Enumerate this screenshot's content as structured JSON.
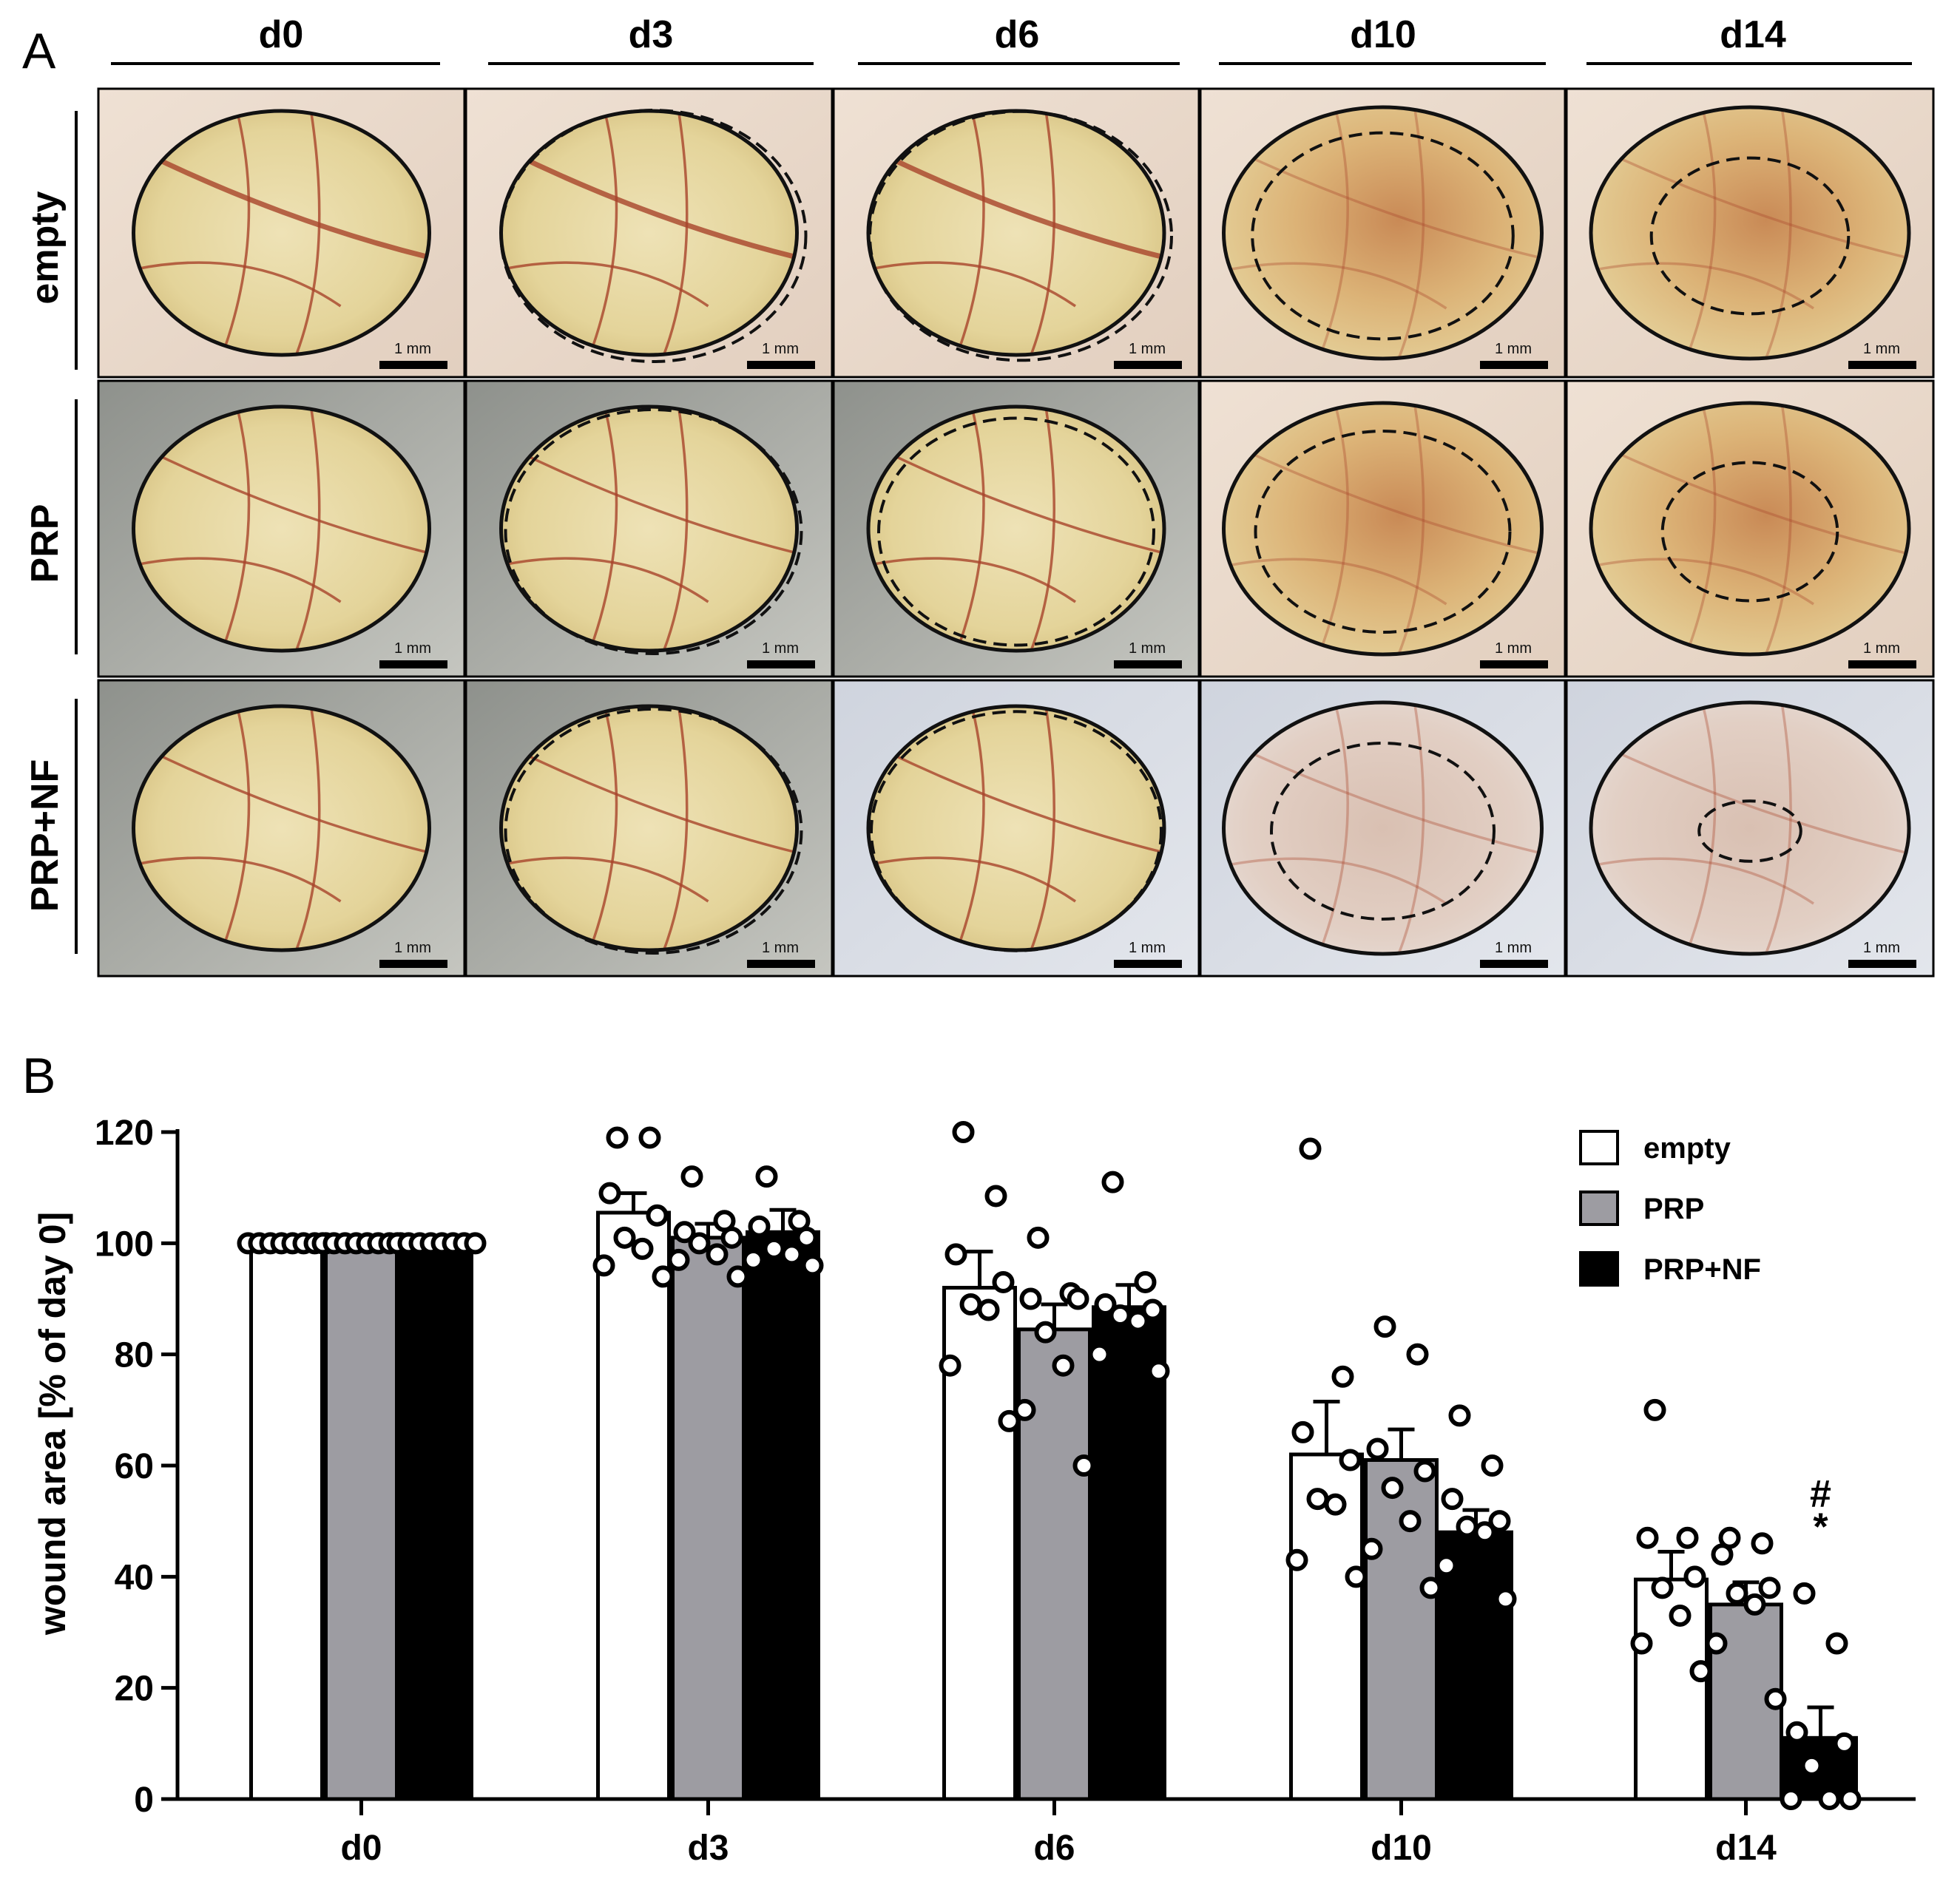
{
  "panel_a": {
    "label": "A",
    "days": [
      "d0",
      "d3",
      "d6",
      "d10",
      "d14"
    ],
    "groups": [
      "empty",
      "PRP",
      "PRP+NF"
    ],
    "scale_bar_text": "1 mm",
    "colors": {
      "tissue": "#e8d8a4",
      "vessel": "#a8442a",
      "outline": "#111111",
      "gray_bg": "#c9c9c4",
      "bluish_bg": "#d6dbe3"
    }
  },
  "chart_data": {
    "panel_label": "B",
    "type": "bar",
    "categories": [
      "d0",
      "d3",
      "d6",
      "d10",
      "d14"
    ],
    "ylabel": "wound area [% of day 0]",
    "xlabel": "",
    "ylim": [
      0,
      120
    ],
    "yticks": [
      0,
      20,
      40,
      60,
      80,
      100,
      120
    ],
    "legend_position": "top-right",
    "series": [
      {
        "name": "empty",
        "color": "#ffffff",
        "values": [
          100,
          105.5,
          92,
          62,
          39.5
        ],
        "sem": [
          0,
          3.5,
          6.5,
          9.5,
          5
        ],
        "points": [
          [
            100,
            100,
            100,
            100,
            100,
            100,
            100,
            100
          ],
          [
            119,
            119,
            109,
            105,
            101,
            99,
            96,
            94
          ],
          [
            120,
            108.5,
            98,
            93,
            89,
            88,
            78,
            68
          ],
          [
            117,
            76,
            66,
            61,
            54,
            53,
            43,
            40
          ],
          [
            70,
            47,
            47,
            40,
            38,
            33,
            28,
            23
          ]
        ]
      },
      {
        "name": "PRP",
        "color": "#9d9ca2",
        "values": [
          100,
          101,
          84.5,
          61,
          35
        ],
        "sem": [
          0,
          2.5,
          4.5,
          5.5,
          4
        ],
        "points": [
          [
            100,
            100,
            100,
            100,
            100,
            100,
            100,
            100
          ],
          [
            112,
            104,
            102,
            101,
            100,
            98,
            97,
            94
          ],
          [
            101,
            91,
            90,
            90,
            84,
            78,
            70,
            60
          ],
          [
            85,
            80,
            63,
            59,
            56,
            50,
            45,
            38
          ],
          [
            47,
            46,
            44,
            38,
            37,
            35,
            28,
            18
          ]
        ]
      },
      {
        "name": "PRP+NF",
        "color": "#000000",
        "values": [
          100,
          102,
          88.5,
          48,
          11
        ],
        "sem": [
          0,
          4,
          4,
          4,
          5.5
        ],
        "points": [
          [
            100,
            100,
            100,
            100,
            100,
            100,
            100,
            100
          ],
          [
            112,
            104,
            103,
            101,
            99,
            98,
            97,
            96
          ],
          [
            111,
            93,
            89,
            88,
            87,
            86,
            80,
            77
          ],
          [
            69,
            60,
            54,
            50,
            49,
            48,
            42,
            36
          ],
          [
            37,
            28,
            12,
            10,
            6,
            0,
            0,
            0
          ]
        ]
      }
    ],
    "annotations": [
      {
        "text": "#",
        "category": "d14",
        "series": "PRP+NF",
        "y": 55
      },
      {
        "text": "*",
        "category": "d14",
        "series": "PRP+NF",
        "y": 49
      }
    ]
  }
}
